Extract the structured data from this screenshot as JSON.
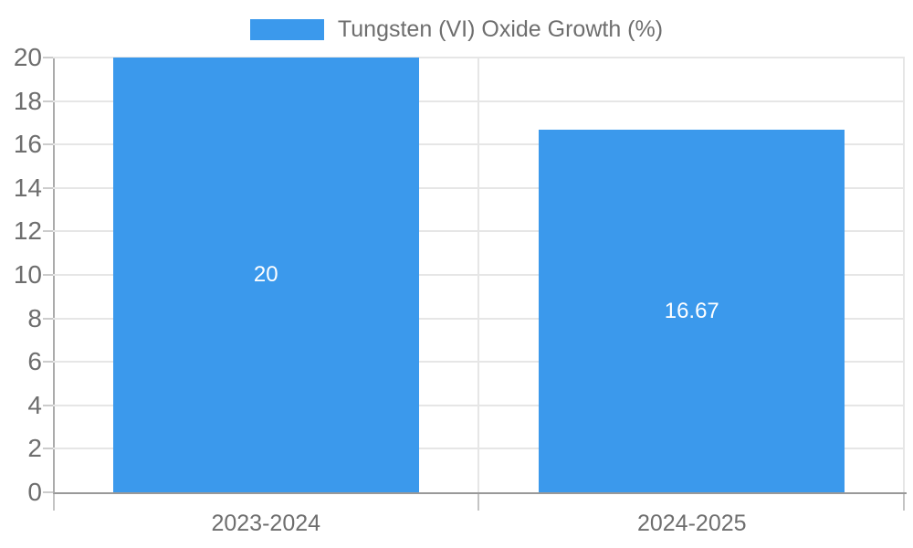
{
  "legend": {
    "label": "Tungsten (VI) Oxide Growth (%)"
  },
  "colors": {
    "bar": "#3b99ec",
    "grid": "#e6e6e6",
    "axis_left": "#ababab",
    "axis_bottom": "#999999",
    "tick": "#cccccc",
    "text": "#6e6e6e",
    "data_label": "#ffffff",
    "background": "#ffffff"
  },
  "chart_data": {
    "type": "bar",
    "title": "",
    "xlabel": "",
    "ylabel": "",
    "categories": [
      "2023-2024",
      "2024-2025"
    ],
    "series": [
      {
        "name": "Tungsten (VI) Oxide Growth (%)",
        "values": [
          20,
          16.67
        ]
      }
    ],
    "data_labels": [
      "20",
      "16.67"
    ],
    "ylim": [
      0,
      20
    ],
    "yticks": [
      0,
      2,
      4,
      6,
      8,
      10,
      12,
      14,
      16,
      18,
      20
    ],
    "grid": true,
    "legend_position": "top-center"
  }
}
